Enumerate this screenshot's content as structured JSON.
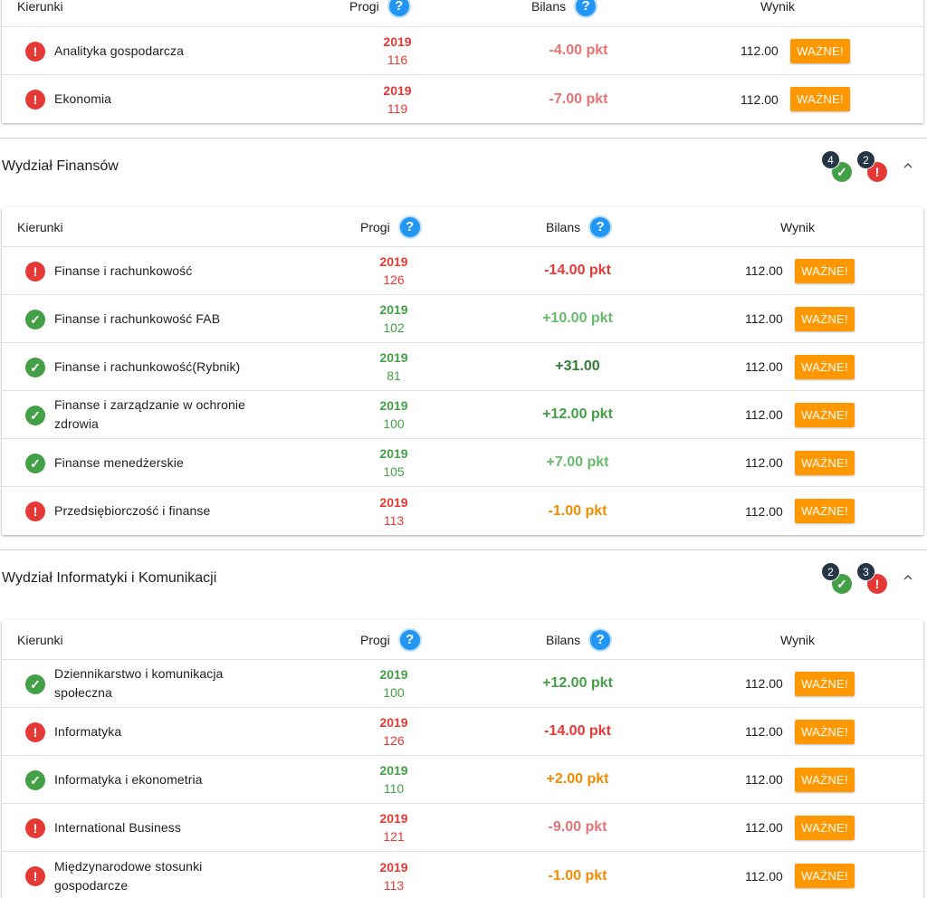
{
  "columns": {
    "kierunki": "Kierunki",
    "progi": "Progi",
    "bilans": "Bilans",
    "wynik": "Wynik",
    "help": "?"
  },
  "button_label": "WAŻNE!",
  "colors": {
    "ok": "#43a047",
    "err": "#e53935",
    "light_ok": "#66bb6a",
    "light_err": "#e57373",
    "warn": "#ef8c00",
    "button": "#ff9800"
  },
  "top_card": {
    "rows": [
      {
        "status": "err",
        "name": "Analityka gospodarcza",
        "year": "2019",
        "prog": "116",
        "bilans": "-4.00 pkt",
        "bilans_tone": "light_err",
        "score": "112.00"
      },
      {
        "status": "err",
        "name": "Ekonomia",
        "year": "2019",
        "prog": "119",
        "bilans": "-7.00 pkt",
        "bilans_tone": "light_err",
        "score": "112.00"
      }
    ]
  },
  "sections": [
    {
      "title": "Wydział Finansów",
      "ok_count": "4",
      "err_count": "2",
      "rows": [
        {
          "status": "err",
          "name": "Finanse i rachunkowość",
          "year": "2019",
          "prog": "126",
          "bilans": "-14.00 pkt",
          "bilans_tone": "err",
          "score": "112.00"
        },
        {
          "status": "ok",
          "name": "Finanse i rachunkowość FAB",
          "year": "2019",
          "prog": "102",
          "bilans": "+10.00 pkt",
          "bilans_tone": "light_ok",
          "score": "112.00"
        },
        {
          "status": "ok",
          "name": "Finanse i rachunkowość(Rybnik)",
          "year": "2019",
          "prog": "81",
          "bilans": "+31.00",
          "bilans_tone": "ok_dark",
          "score": "112.00"
        },
        {
          "status": "ok",
          "name": "Finanse i zarządzanie w ochronie zdrowia",
          "year": "2019",
          "prog": "100",
          "bilans": "+12.00 pkt",
          "bilans_tone": "ok",
          "score": "112.00"
        },
        {
          "status": "ok",
          "name": "Finanse menedżerskie",
          "year": "2019",
          "prog": "105",
          "bilans": "+7.00 pkt",
          "bilans_tone": "light_ok",
          "score": "112.00"
        },
        {
          "status": "err",
          "name": "Przedsiębiorczość i finanse",
          "year": "2019",
          "prog": "113",
          "bilans": "-1.00 pkt",
          "bilans_tone": "warn",
          "score": "112.00"
        }
      ]
    },
    {
      "title": "Wydział Informatyki i Komunikacji",
      "ok_count": "2",
      "err_count": "3",
      "rows": [
        {
          "status": "ok",
          "name": "Dziennikarstwo i komunikacja społeczna",
          "year": "2019",
          "prog": "100",
          "bilans": "+12.00 pkt",
          "bilans_tone": "ok",
          "score": "112.00"
        },
        {
          "status": "err",
          "name": "Informatyka",
          "year": "2019",
          "prog": "126",
          "bilans": "-14.00 pkt",
          "bilans_tone": "err",
          "score": "112.00"
        },
        {
          "status": "ok",
          "name": "Informatyka i ekonometria",
          "year": "2019",
          "prog": "110",
          "bilans": "+2.00 pkt",
          "bilans_tone": "warn",
          "score": "112.00"
        },
        {
          "status": "err",
          "name": "International Business",
          "year": "2019",
          "prog": "121",
          "bilans": "-9.00 pkt",
          "bilans_tone": "light_err",
          "score": "112.00"
        },
        {
          "status": "err",
          "name": "Międzynarodowe stosunki gospodarcze",
          "year": "2019",
          "prog": "113",
          "bilans": "-1.00 pkt",
          "bilans_tone": "warn",
          "score": "112.00"
        }
      ]
    }
  ]
}
